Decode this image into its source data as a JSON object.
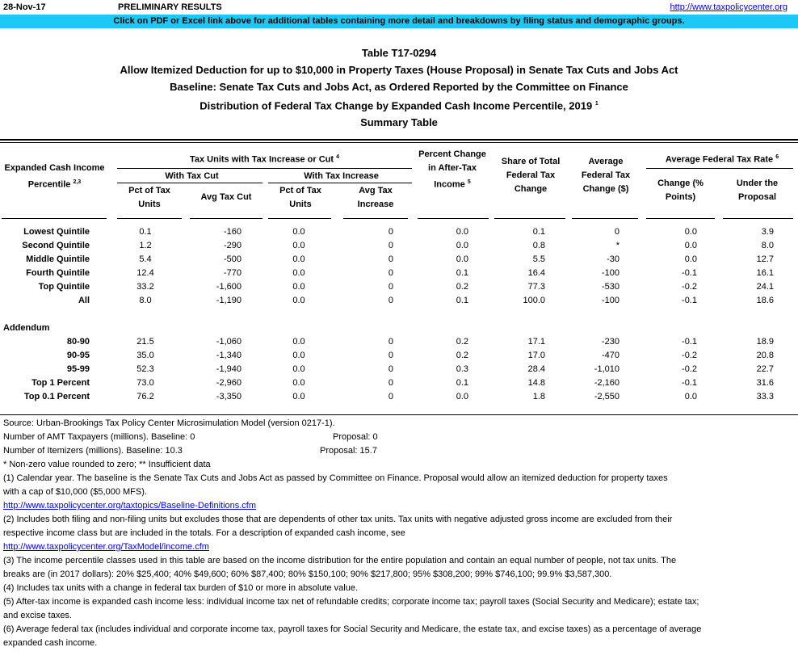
{
  "header": {
    "date": "28-Nov-17",
    "status": "PRELIMINARY RESULTS",
    "site_link": "http://www.taxpolicycenter.org",
    "banner": "Click on PDF or Excel link above for additional tables containing more detail and breakdowns by filing status and demographic groups."
  },
  "titles": {
    "table_id": "Table T17-0294",
    "title": "Allow Itemized Deduction for up to $10,000 in Property Taxes (House Proposal) in Senate Tax Cuts and Jobs Act",
    "baseline": "Baseline: Senate Tax Cuts and Jobs Act, as Ordered Reported by the Committee on Finance",
    "distribution": "Distribution of Federal Tax Change by Expanded Cash Income Percentile, 2019",
    "distribution_sup": "1",
    "summary": "Summary Table"
  },
  "columns": {
    "percentile": "Expanded Cash Income Percentile",
    "percentile_sup": "2,3",
    "tax_units_group": "Tax Units with Tax Increase or Cut",
    "tax_units_sup": "4",
    "with_cut": "With Tax Cut",
    "with_increase": "With Tax Increase",
    "pct_units_cut": "Pct of Tax Units",
    "avg_cut": "Avg Tax Cut",
    "pct_units_inc": "Pct of Tax Units",
    "avg_inc": "Avg Tax Increase",
    "pct_change": "Percent Change in After-Tax Income",
    "pct_change_sup": "5",
    "share": "Share of Total Federal Tax Change",
    "avg_change": "Average Federal Tax Change ($)",
    "rate_group": "Average Federal Tax Rate",
    "rate_sup": "6",
    "rate_change": "Change (% Points)",
    "rate_under": "Under the Proposal"
  },
  "rows": [
    [
      "Lowest Quintile",
      "0.1",
      "-160",
      "0.0",
      "0",
      "0.0",
      "0.1",
      "0",
      "0.0",
      "3.9"
    ],
    [
      "Second Quintile",
      "1.2",
      "-290",
      "0.0",
      "0",
      "0.0",
      "0.8",
      "*",
      "0.0",
      "8.0"
    ],
    [
      "Middle Quintile",
      "5.4",
      "-500",
      "0.0",
      "0",
      "0.0",
      "5.5",
      "-30",
      "0.0",
      "12.7"
    ],
    [
      "Fourth Quintile",
      "12.4",
      "-770",
      "0.0",
      "0",
      "0.1",
      "16.4",
      "-100",
      "-0.1",
      "16.1"
    ],
    [
      "Top Quintile",
      "33.2",
      "-1,600",
      "0.0",
      "0",
      "0.2",
      "77.3",
      "-530",
      "-0.2",
      "24.1"
    ],
    [
      "All",
      "8.0",
      "-1,190",
      "0.0",
      "0",
      "0.1",
      "100.0",
      "-100",
      "-0.1",
      "18.6"
    ]
  ],
  "addendum_label": "Addendum",
  "addendum": [
    [
      "80-90",
      "21.5",
      "-1,060",
      "0.0",
      "0",
      "0.2",
      "17.1",
      "-230",
      "-0.1",
      "18.9"
    ],
    [
      "90-95",
      "35.0",
      "-1,340",
      "0.0",
      "0",
      "0.2",
      "17.0",
      "-470",
      "-0.2",
      "20.8"
    ],
    [
      "95-99",
      "52.3",
      "-1,940",
      "0.0",
      "0",
      "0.3",
      "28.4",
      "-1,010",
      "-0.2",
      "22.7"
    ],
    [
      "Top 1 Percent",
      "73.0",
      "-2,960",
      "0.0",
      "0",
      "0.1",
      "14.8",
      "-2,160",
      "-0.1",
      "31.6"
    ],
    [
      "Top 0.1 Percent",
      "76.2",
      "-3,350",
      "0.0",
      "0",
      "0.0",
      "1.8",
      "-2,550",
      "0.0",
      "33.3"
    ]
  ],
  "notes": {
    "source": "Source: Urban-Brookings Tax Policy Center Microsimulation Model (version 0217-1).",
    "amt": "Number of AMT Taxpayers (millions).  Baseline: 0",
    "amt_prop": "Proposal: 0",
    "itemizers": "Number of Itemizers (millions).  Baseline: 10.3",
    "itemizers_prop": "Proposal: 15.7",
    "star": "* Non-zero value rounded to zero; ** Insufficient data",
    "n1a": "(1) Calendar year. The baseline is the Senate Tax Cuts and Jobs Act as passed by Committee on Finance. Proposal would allow an itemized deduction for property taxes",
    "n1b": "with a cap of $10,000 ($5,000 MFS).",
    "link1": "http://www.taxpolicycenter.org/taxtopics/Baseline-Definitions.cfm",
    "n2a": "(2) Includes both filing and non-filing units but excludes those that are dependents of other tax units. Tax units with negative adjusted gross income are excluded from their",
    "n2b": "respective income class but are included in the totals. For a description of expanded cash income, see",
    "link2": "http://www.taxpolicycenter.org/TaxModel/income.cfm",
    "n3a": "(3) The income percentile classes used in this table are based on the income distribution for the entire population and contain an equal number of people, not tax units. The",
    "n3b": "breaks are (in 2017 dollars): 20% $25,400; 40% $49,600; 60% $87,400; 80% $150,100; 90% $217,800; 95% $308,200; 99% $746,100; 99.9% $3,587,300.",
    "n4": "(4) Includes tax units with a change in federal tax burden of $10 or more in absolute value.",
    "n5a": "(5) After-tax income is expanded cash income less: individual income tax net of refundable credits; corporate income tax; payroll taxes (Social Security and Medicare); estate tax;",
    "n5b": "and excise taxes.",
    "n6a": "(6) Average federal tax (includes individual and corporate income tax, payroll taxes for Social Security and Medicare, the estate tax, and excise taxes) as a percentage of average",
    "n6b": "expanded cash income."
  }
}
